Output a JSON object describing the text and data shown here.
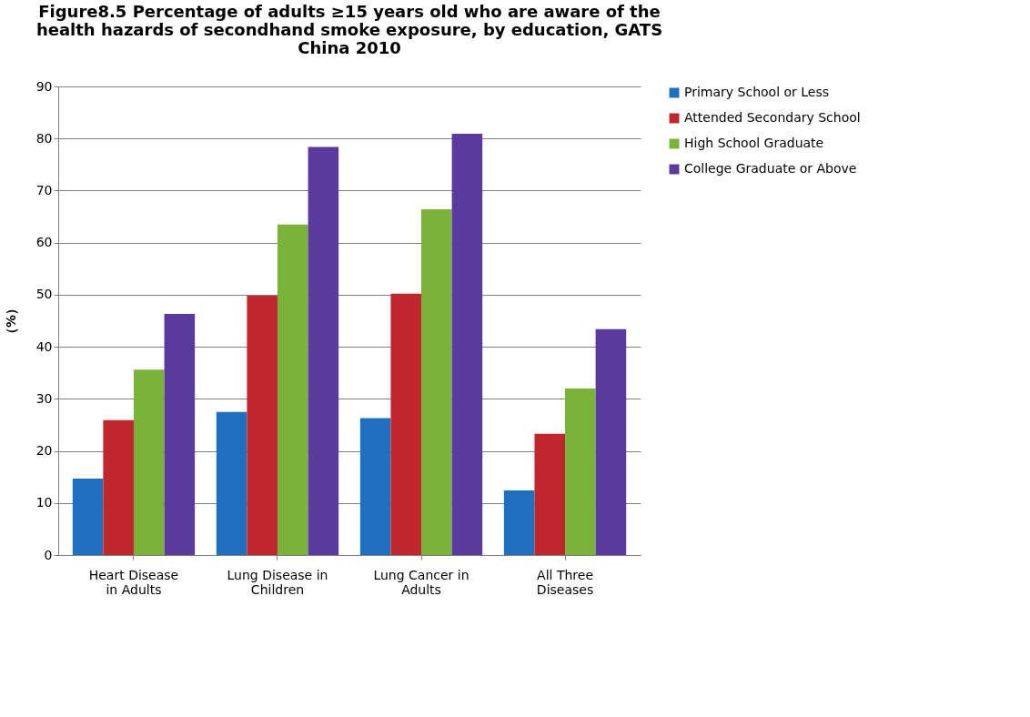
{
  "chart_data": {
    "type": "bar",
    "title": "Figure8.5 Percentage of adults  ≥15 years old who are aware of the\nhealth hazards of secondhand smoke exposure, by education, GATS\nChina 2010",
    "ylabel": "（%）",
    "categories": [
      "Heart Disease\nin Adults",
      "Lung Disease in\nChildren",
      "Lung Cancer in\nAdults",
      "All Three\nDiseases"
    ],
    "series": [
      {
        "name": "Primary School or Less",
        "color": "#1f6fc0",
        "values": [
          14.7,
          27.5,
          26.3,
          12.4
        ]
      },
      {
        "name": "Attended Secondary School",
        "color": "#c0272d",
        "values": [
          25.9,
          49.8,
          50.2,
          23.3
        ]
      },
      {
        "name": "High School Graduate",
        "color": "#7ab23a",
        "values": [
          35.6,
          63.5,
          66.4,
          32.0
        ]
      },
      {
        "name": "College Graduate  or Above",
        "color": "#5b3a9e",
        "values": [
          46.3,
          78.4,
          80.9,
          43.4
        ]
      }
    ],
    "ylim": [
      0,
      90
    ],
    "yticks": [
      0,
      10,
      20,
      30,
      40,
      50,
      60,
      70,
      80,
      90
    ],
    "grid": "y",
    "legend": "right"
  }
}
